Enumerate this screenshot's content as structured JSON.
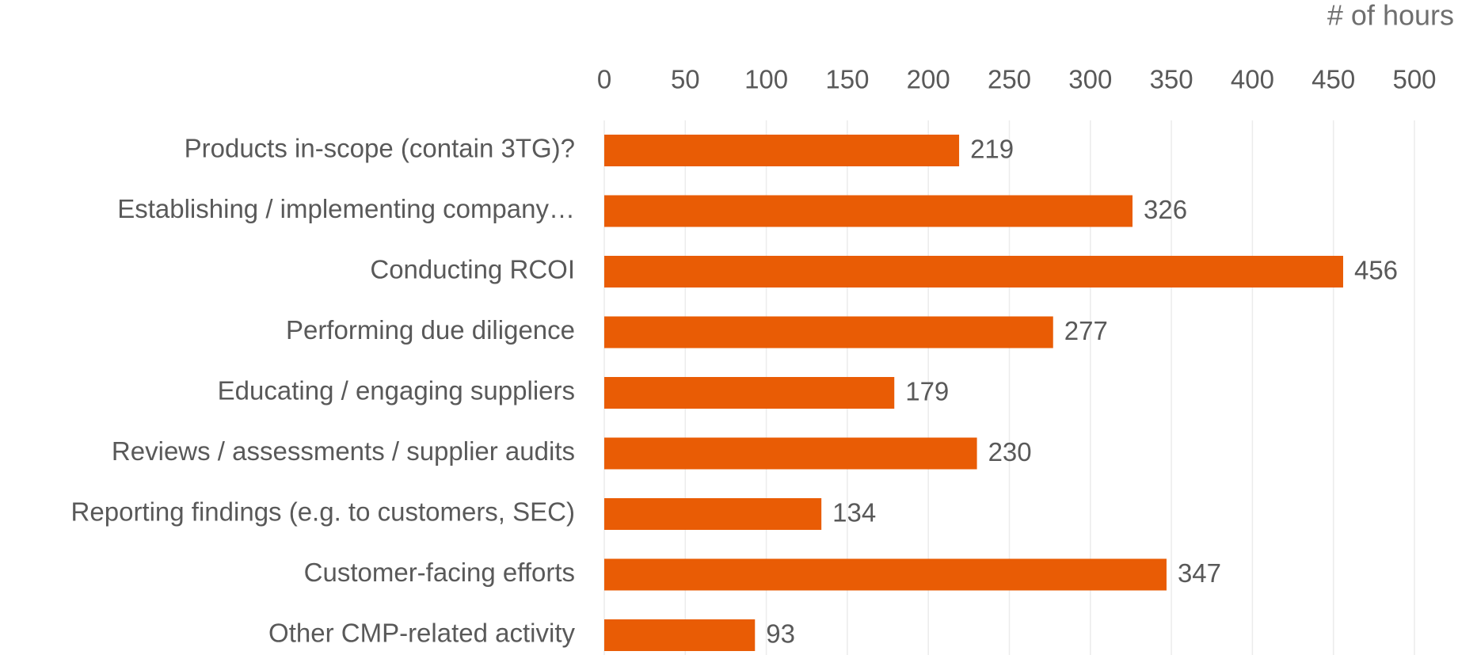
{
  "chart_data": {
    "type": "bar",
    "orientation": "horizontal",
    "xlabel": "# of hours",
    "categories": [
      "Products in-scope (contain 3TG)?",
      "Establishing / implementing company…",
      "Conducting RCOI",
      "Performing due diligence",
      "Educating / engaging suppliers",
      "Reviews / assessments / supplier audits",
      "Reporting findings (e.g. to customers, SEC)",
      "Customer-facing efforts",
      "Other CMP-related activity"
    ],
    "values": [
      219,
      326,
      456,
      277,
      179,
      230,
      134,
      347,
      93
    ],
    "color": "#e95c05",
    "xlim": [
      0,
      500
    ],
    "xticks": [
      0,
      50,
      100,
      150,
      200,
      250,
      300,
      350,
      400,
      450,
      500
    ],
    "grid": true
  }
}
